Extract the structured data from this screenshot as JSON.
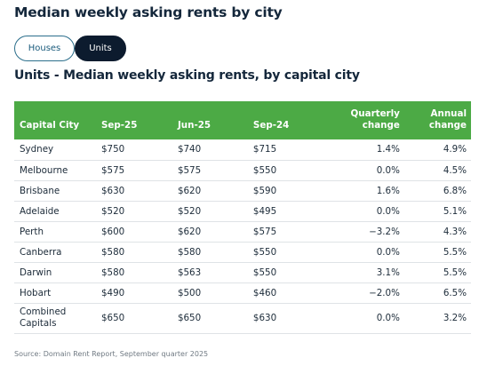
{
  "title": "Median weekly asking rents by city",
  "tabs": {
    "houses_label": "Houses",
    "units_label": "Units",
    "active": "Units"
  },
  "colors": {
    "header_bg": "#4caa45",
    "active_tab_bg": "#0c1b2e",
    "title": "#14273b"
  },
  "chart_data": {
    "type": "table",
    "title": "Units - Median weekly asking rents, by capital city",
    "columns": [
      "Capital City",
      "Sep-25",
      "Jun-25",
      "Sep-24",
      "Quarterly change",
      "Annual change"
    ],
    "rows": [
      [
        "Sydney",
        "$750",
        "$740",
        "$715",
        "1.4%",
        "4.9%"
      ],
      [
        "Melbourne",
        "$575",
        "$575",
        "$550",
        "0.0%",
        "4.5%"
      ],
      [
        "Brisbane",
        "$630",
        "$620",
        "$590",
        "1.6%",
        "6.8%"
      ],
      [
        "Adelaide",
        "$520",
        "$520",
        "$495",
        "0.0%",
        "5.1%"
      ],
      [
        "Perth",
        "$600",
        "$620",
        "$575",
        "−3.2%",
        "4.3%"
      ],
      [
        "Canberra",
        "$580",
        "$580",
        "$550",
        "0.0%",
        "5.5%"
      ],
      [
        "Darwin",
        "$580",
        "$563",
        "$550",
        "3.1%",
        "5.5%"
      ],
      [
        "Hobart",
        "$490",
        "$500",
        "$460",
        "−2.0%",
        "6.5%"
      ],
      [
        "Combined Capitals",
        "$650",
        "$650",
        "$630",
        "0.0%",
        "3.2%"
      ]
    ]
  },
  "source": "Source: Domain Rent Report, September quarter 2025"
}
